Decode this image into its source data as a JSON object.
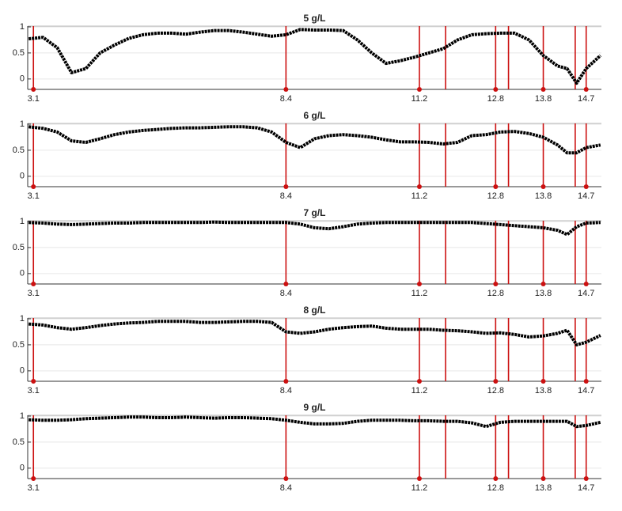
{
  "chart_data": [
    {
      "type": "line",
      "title": "5 g/L",
      "x": [
        3.0,
        3.3,
        3.6,
        3.9,
        4.2,
        4.5,
        4.8,
        5.1,
        5.4,
        5.7,
        6.0,
        6.3,
        6.6,
        6.9,
        7.2,
        7.5,
        7.8,
        8.1,
        8.4,
        8.7,
        9.0,
        9.3,
        9.6,
        9.9,
        10.2,
        10.5,
        10.8,
        11.1,
        11.4,
        11.7,
        12.0,
        12.3,
        12.6,
        12.9,
        13.2,
        13.5,
        13.8,
        14.1,
        14.3,
        14.5,
        14.7,
        15.0
      ],
      "series": [
        {
          "color": "#000000",
          "values": [
            0.77,
            0.8,
            0.6,
            0.12,
            0.2,
            0.5,
            0.65,
            0.78,
            0.85,
            0.88,
            0.88,
            0.86,
            0.9,
            0.93,
            0.93,
            0.9,
            0.86,
            0.82,
            0.85,
            0.95,
            0.94,
            0.94,
            0.93,
            0.75,
            0.5,
            0.3,
            0.35,
            0.42,
            0.5,
            0.58,
            0.75,
            0.85,
            0.87,
            0.88,
            0.88,
            0.75,
            0.45,
            0.25,
            0.2,
            -0.08,
            0.2,
            0.45
          ]
        }
      ],
      "xlim": [
        2.98,
        15.02
      ],
      "ylim": [
        -0.2,
        1
      ],
      "xticks": [
        3.1,
        8.4,
        11.2,
        12.8,
        13.8,
        14.7
      ],
      "yticks": [
        0,
        0.5,
        1
      ],
      "vlines": [
        3.1,
        8.4,
        11.2,
        11.75,
        12.8,
        13.07,
        13.8,
        14.47,
        14.7
      ],
      "vline_color": "#cc1111",
      "grid": true
    },
    {
      "type": "line",
      "title": "6 g/L",
      "x": [
        3.0,
        3.3,
        3.6,
        3.9,
        4.2,
        4.5,
        4.8,
        5.1,
        5.4,
        5.7,
        6.0,
        6.3,
        6.6,
        6.9,
        7.2,
        7.5,
        7.8,
        8.1,
        8.4,
        8.7,
        9.0,
        9.3,
        9.6,
        9.9,
        10.2,
        10.5,
        10.8,
        11.1,
        11.4,
        11.7,
        12.0,
        12.3,
        12.6,
        12.9,
        13.2,
        13.5,
        13.8,
        14.1,
        14.3,
        14.5,
        14.7,
        15.0
      ],
      "series": [
        {
          "color": "#000000",
          "values": [
            0.95,
            0.92,
            0.85,
            0.68,
            0.65,
            0.72,
            0.8,
            0.85,
            0.88,
            0.9,
            0.92,
            0.93,
            0.93,
            0.94,
            0.95,
            0.95,
            0.93,
            0.85,
            0.65,
            0.55,
            0.72,
            0.78,
            0.8,
            0.78,
            0.75,
            0.7,
            0.66,
            0.66,
            0.65,
            0.62,
            0.65,
            0.78,
            0.8,
            0.85,
            0.86,
            0.82,
            0.75,
            0.6,
            0.45,
            0.45,
            0.55,
            0.6
          ]
        }
      ],
      "xlim": [
        2.98,
        15.02
      ],
      "ylim": [
        -0.2,
        1
      ],
      "xticks": [
        3.1,
        8.4,
        11.2,
        12.8,
        13.8,
        14.7
      ],
      "yticks": [
        0,
        0.5,
        1
      ],
      "vlines": [
        3.1,
        8.4,
        11.2,
        11.75,
        12.8,
        13.07,
        13.8,
        14.47,
        14.7
      ],
      "vline_color": "#cc1111",
      "grid": true
    },
    {
      "type": "line",
      "title": "7 g/L",
      "x": [
        3.0,
        3.3,
        3.6,
        3.9,
        4.2,
        4.5,
        4.8,
        5.1,
        5.4,
        5.7,
        6.0,
        6.3,
        6.6,
        6.9,
        7.2,
        7.5,
        7.8,
        8.1,
        8.4,
        8.7,
        9.0,
        9.3,
        9.6,
        9.9,
        10.2,
        10.5,
        10.8,
        11.1,
        11.4,
        11.7,
        12.0,
        12.3,
        12.6,
        12.9,
        13.2,
        13.5,
        13.8,
        14.1,
        14.3,
        14.5,
        14.7,
        15.0
      ],
      "series": [
        {
          "color": "#000000",
          "values": [
            0.98,
            0.97,
            0.95,
            0.94,
            0.95,
            0.96,
            0.97,
            0.97,
            0.98,
            0.98,
            0.98,
            0.98,
            0.98,
            0.99,
            0.98,
            0.98,
            0.98,
            0.98,
            0.98,
            0.95,
            0.88,
            0.86,
            0.9,
            0.95,
            0.97,
            0.98,
            0.98,
            0.98,
            0.98,
            0.98,
            0.98,
            0.98,
            0.96,
            0.94,
            0.92,
            0.9,
            0.88,
            0.83,
            0.75,
            0.9,
            0.97,
            0.98
          ]
        }
      ],
      "xlim": [
        2.98,
        15.02
      ],
      "ylim": [
        -0.2,
        1
      ],
      "xticks": [
        3.1,
        8.4,
        11.2,
        12.8,
        13.8,
        14.7
      ],
      "yticks": [
        0,
        0.5,
        1
      ],
      "vlines": [
        3.1,
        8.4,
        11.2,
        11.75,
        12.8,
        13.07,
        13.8,
        14.47,
        14.7
      ],
      "vline_color": "#cc1111",
      "grid": true
    },
    {
      "type": "line",
      "title": "8 g/L",
      "x": [
        3.0,
        3.3,
        3.6,
        3.9,
        4.2,
        4.5,
        4.8,
        5.1,
        5.4,
        5.7,
        6.0,
        6.3,
        6.6,
        6.9,
        7.2,
        7.5,
        7.8,
        8.1,
        8.4,
        8.7,
        9.0,
        9.3,
        9.6,
        9.9,
        10.2,
        10.5,
        10.8,
        11.1,
        11.4,
        11.7,
        12.0,
        12.3,
        12.6,
        12.9,
        13.2,
        13.5,
        13.8,
        14.1,
        14.3,
        14.5,
        14.7,
        15.0
      ],
      "series": [
        {
          "color": "#000000",
          "values": [
            0.9,
            0.88,
            0.83,
            0.8,
            0.83,
            0.87,
            0.9,
            0.92,
            0.93,
            0.95,
            0.95,
            0.95,
            0.93,
            0.93,
            0.94,
            0.95,
            0.95,
            0.93,
            0.75,
            0.72,
            0.75,
            0.8,
            0.83,
            0.85,
            0.86,
            0.82,
            0.8,
            0.8,
            0.8,
            0.78,
            0.77,
            0.75,
            0.72,
            0.73,
            0.7,
            0.65,
            0.67,
            0.72,
            0.78,
            0.5,
            0.55,
            0.68
          ]
        }
      ],
      "xlim": [
        2.98,
        15.02
      ],
      "ylim": [
        -0.2,
        1
      ],
      "xticks": [
        3.1,
        8.4,
        11.2,
        12.8,
        13.8,
        14.7
      ],
      "yticks": [
        0,
        0.5,
        1
      ],
      "vlines": [
        3.1,
        8.4,
        11.2,
        11.75,
        12.8,
        13.07,
        13.8,
        14.47,
        14.7
      ],
      "vline_color": "#cc1111",
      "grid": true
    },
    {
      "type": "line",
      "title": "9 g/L",
      "x": [
        3.0,
        3.3,
        3.6,
        3.9,
        4.2,
        4.5,
        4.8,
        5.1,
        5.4,
        5.7,
        6.0,
        6.3,
        6.6,
        6.9,
        7.2,
        7.5,
        7.8,
        8.1,
        8.4,
        8.7,
        9.0,
        9.3,
        9.6,
        9.9,
        10.2,
        10.5,
        10.8,
        11.1,
        11.4,
        11.7,
        12.0,
        12.3,
        12.6,
        12.9,
        13.2,
        13.5,
        13.8,
        14.1,
        14.3,
        14.5,
        14.7,
        15.0
      ],
      "series": [
        {
          "color": "#000000",
          "values": [
            0.93,
            0.92,
            0.92,
            0.93,
            0.95,
            0.96,
            0.97,
            0.98,
            0.98,
            0.97,
            0.97,
            0.98,
            0.97,
            0.96,
            0.97,
            0.97,
            0.96,
            0.95,
            0.92,
            0.88,
            0.85,
            0.85,
            0.86,
            0.9,
            0.92,
            0.92,
            0.92,
            0.91,
            0.91,
            0.9,
            0.9,
            0.87,
            0.8,
            0.88,
            0.9,
            0.9,
            0.9,
            0.9,
            0.9,
            0.8,
            0.82,
            0.88
          ]
        }
      ],
      "xlim": [
        2.98,
        15.02
      ],
      "ylim": [
        -0.2,
        1
      ],
      "xticks": [
        3.1,
        8.4,
        11.2,
        12.8,
        13.8,
        14.7
      ],
      "yticks": [
        0,
        0.5,
        1
      ],
      "vlines": [
        3.1,
        8.4,
        11.2,
        11.75,
        12.8,
        13.07,
        13.8,
        14.47,
        14.7
      ],
      "vline_color": "#cc1111",
      "grid": true
    }
  ]
}
